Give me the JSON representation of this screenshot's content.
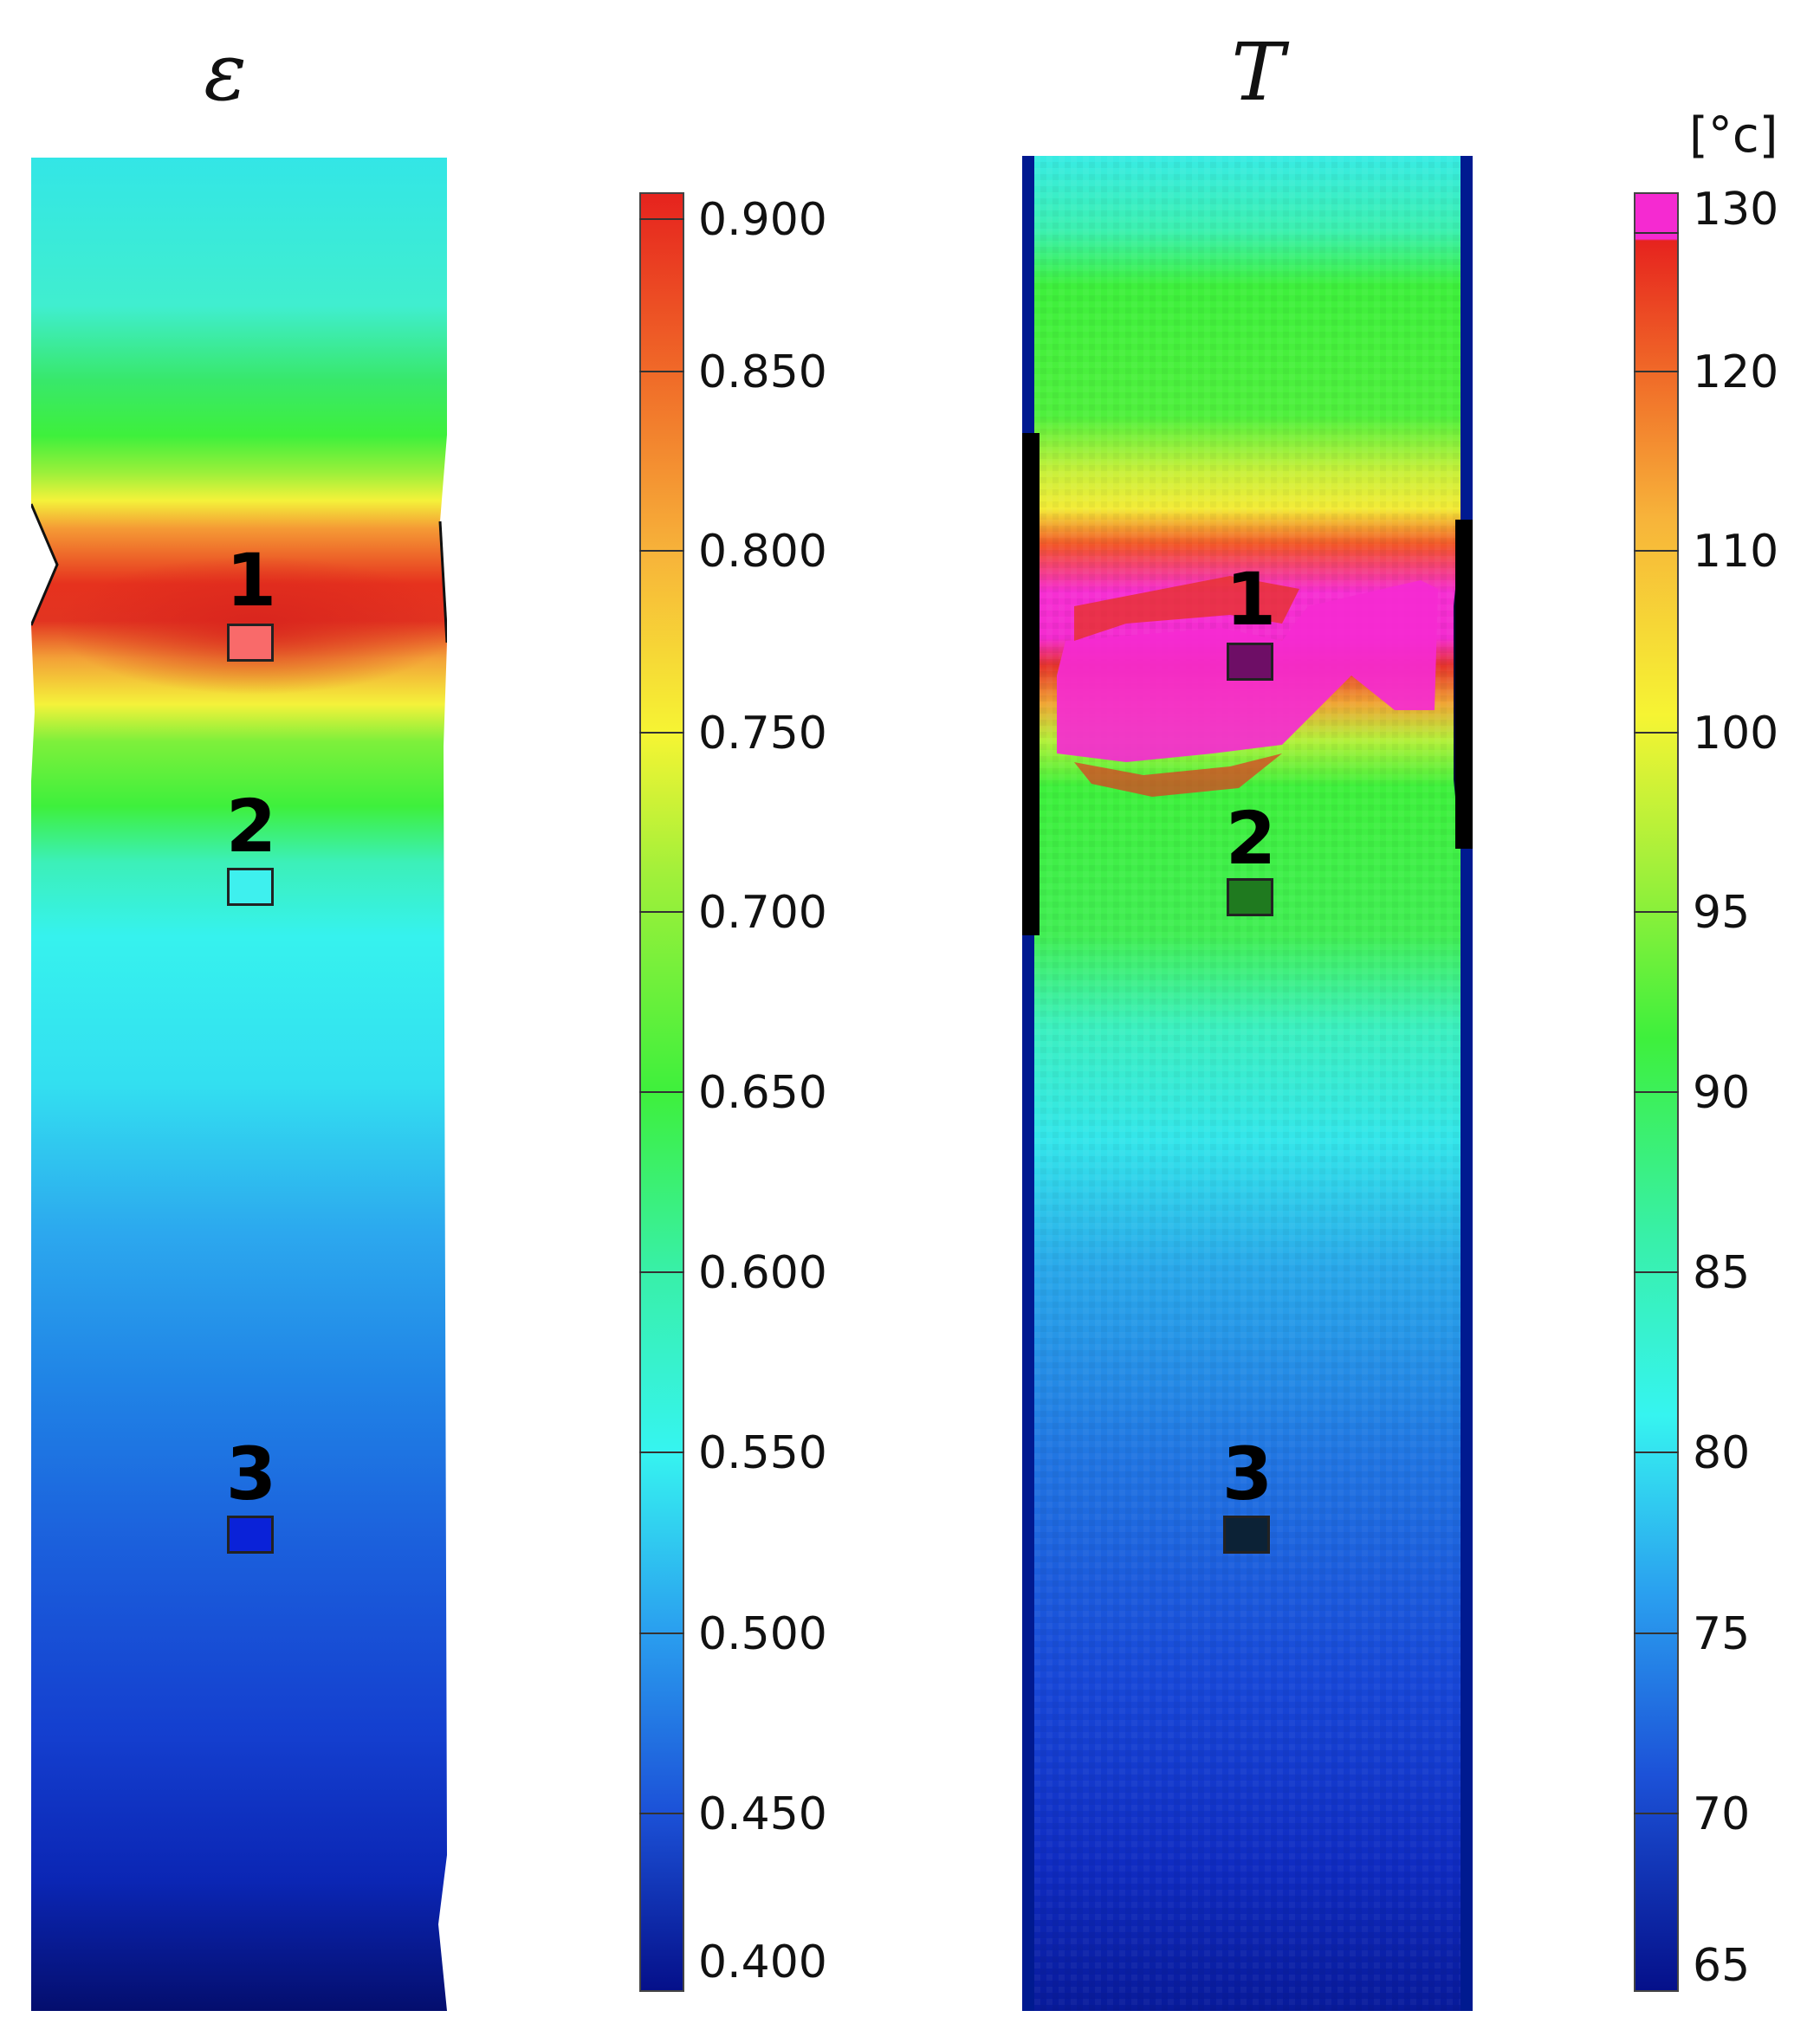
{
  "left_panel": {
    "title": "ε",
    "markers": [
      {
        "label": "1",
        "color": "#f96a6a"
      },
      {
        "label": "2",
        "color": "#3ef0ee"
      },
      {
        "label": "3",
        "color": "#0a22d8"
      }
    ],
    "colorbar": {
      "ticks": [
        "0.900",
        "0.850",
        "0.800",
        "0.750",
        "0.700",
        "0.650",
        "0.600",
        "0.550",
        "0.500",
        "0.450",
        "0.400"
      ]
    }
  },
  "right_panel": {
    "title": "T",
    "markers": [
      {
        "label": "1",
        "color": "#6e0e66"
      },
      {
        "label": "2",
        "color": "#1f7a1f"
      },
      {
        "label": "3",
        "color": "#0c2236"
      }
    ],
    "colorbar": {
      "unit": "[°c]",
      "ticks": [
        "130",
        "120",
        "110",
        "100",
        "95",
        "90",
        "85",
        "80",
        "75",
        "70",
        "65"
      ]
    }
  },
  "colors": {
    "red": "#e6231e",
    "orange": "#f77a2a",
    "yellow": "#f6f433",
    "green": "#3ef03c",
    "cyan": "#36f4f0",
    "blue": "#1d62e0",
    "darkblue": "#05108a",
    "magenta": "#f52ad1"
  }
}
